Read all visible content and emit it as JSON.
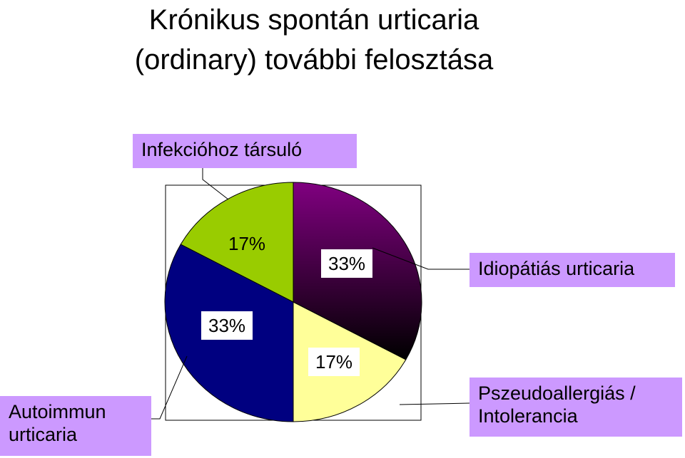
{
  "chart_data": {
    "type": "pie",
    "title": "Krónikus spontán urticaria (ordinary) további felosztása",
    "categories": [
      "Idiopátiás urticaria",
      "Pszeudoallergiás / Intolerancia",
      "Autoimmun urticaria",
      "Infekcióhoz társuló"
    ],
    "values": [
      33,
      17,
      33,
      17
    ],
    "value_labels": [
      "33%",
      "17%",
      "33%",
      "17%"
    ],
    "colors": [
      "#800080",
      "#ffff99",
      "#000080",
      "#99cc00"
    ]
  }
}
